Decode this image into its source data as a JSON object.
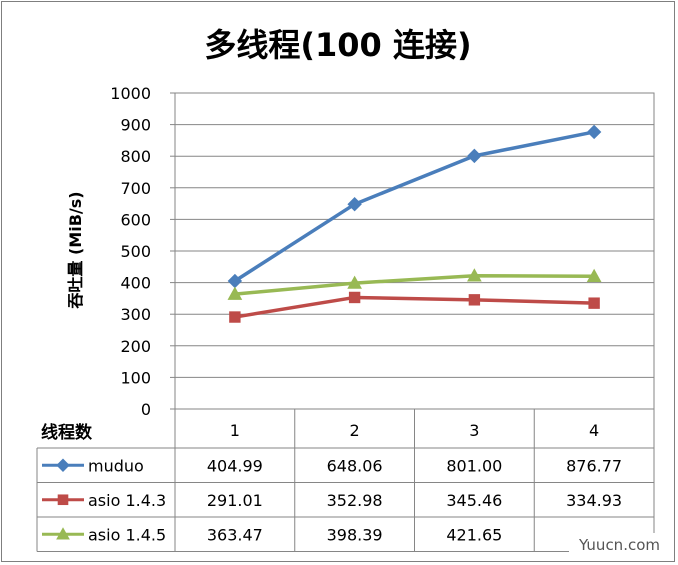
{
  "chart_data": {
    "type": "line",
    "title": "多线程(100 连接)",
    "ylabel": "吞吐量 (MiB/s)",
    "xlabel": "线程数",
    "categories": [
      "1",
      "2",
      "3",
      "4"
    ],
    "ylim": [
      0,
      1000
    ],
    "yticks": [
      "0",
      "100",
      "200",
      "300",
      "400",
      "500",
      "600",
      "700",
      "800",
      "900",
      "1000"
    ],
    "grid": true,
    "legend": "data-table",
    "series": [
      {
        "name": "muduo",
        "values": [
          404.99,
          648.06,
          801.0,
          876.77
        ],
        "labels": [
          "404.99",
          "648.06",
          "801.00",
          "876.77"
        ],
        "color": "#4a7ebb",
        "marker": "diamond"
      },
      {
        "name": "asio 1.4.3",
        "values": [
          291.01,
          352.98,
          345.46,
          334.93
        ],
        "labels": [
          "291.01",
          "352.98",
          "345.46",
          "334.93"
        ],
        "color": "#be4b48",
        "marker": "square"
      },
      {
        "name": "asio 1.4.5",
        "values": [
          363.47,
          398.39,
          421.65,
          420.0
        ],
        "labels": [
          "363.47",
          "398.39",
          "421.65",
          ""
        ],
        "color": "#98b954",
        "marker": "triangle"
      }
    ]
  },
  "watermark": "Yuucn.com"
}
